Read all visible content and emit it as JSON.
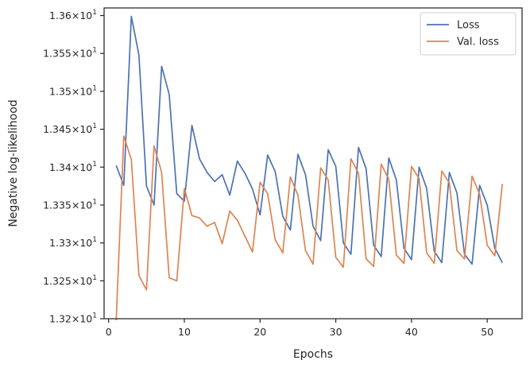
{
  "chart_data": {
    "type": "line",
    "xlabel": "Epochs",
    "ylabel": "Negative log-likelihood",
    "xlim": [
      -0.6,
      54.6
    ],
    "ylim": [
      13.2,
      13.61
    ],
    "xticks": [
      0,
      10,
      20,
      30,
      40,
      50
    ],
    "xtick_labels": [
      "0",
      "10",
      "20",
      "30",
      "40",
      "50"
    ],
    "yticks": [
      13.2,
      13.25,
      13.3,
      13.35,
      13.4,
      13.45,
      13.5,
      13.55,
      13.6
    ],
    "ytick_mantissas": [
      "1.32",
      "1.325",
      "1.33",
      "1.335",
      "1.34",
      "1.345",
      "1.35",
      "1.355",
      "1.36"
    ],
    "ytick_base": "10",
    "ytick_exponent": "1",
    "ytick_times": "×",
    "legend_position": "top-right",
    "x": [
      1,
      2,
      3,
      4,
      5,
      6,
      7,
      8,
      9,
      10,
      11,
      12,
      13,
      14,
      15,
      16,
      17,
      18,
      19,
      20,
      21,
      22,
      23,
      24,
      25,
      26,
      27,
      28,
      29,
      30,
      31,
      32,
      33,
      34,
      35,
      36,
      37,
      38,
      39,
      40,
      41,
      42,
      43,
      44,
      45,
      46,
      47,
      48,
      49,
      50,
      51,
      52
    ],
    "series": [
      {
        "name": "Loss",
        "color": "#4c72b0",
        "values": [
          13.402,
          13.376,
          13.599,
          13.548,
          13.375,
          13.35,
          13.533,
          13.496,
          13.365,
          13.355,
          13.455,
          13.411,
          13.393,
          13.381,
          13.39,
          13.363,
          13.408,
          13.392,
          13.371,
          13.337,
          13.416,
          13.394,
          13.335,
          13.317,
          13.417,
          13.39,
          13.322,
          13.303,
          13.423,
          13.401,
          13.3,
          13.285,
          13.426,
          13.398,
          13.297,
          13.282,
          13.412,
          13.383,
          13.293,
          13.278,
          13.4,
          13.372,
          13.289,
          13.274,
          13.393,
          13.366,
          13.285,
          13.272,
          13.376,
          13.35,
          13.293,
          13.274
        ]
      },
      {
        "name": "Val. loss",
        "color": "#dd8452",
        "values": [
          13.198,
          13.441,
          13.41,
          13.257,
          13.238,
          13.428,
          13.393,
          13.254,
          13.25,
          13.372,
          13.336,
          13.333,
          13.322,
          13.327,
          13.299,
          13.342,
          13.33,
          13.309,
          13.288,
          13.38,
          13.365,
          13.304,
          13.287,
          13.387,
          13.363,
          13.29,
          13.272,
          13.399,
          13.383,
          13.281,
          13.268,
          13.411,
          13.392,
          13.279,
          13.269,
          13.404,
          13.384,
          13.284,
          13.273,
          13.401,
          13.385,
          13.287,
          13.273,
          13.395,
          13.379,
          13.29,
          13.279,
          13.388,
          13.364,
          13.297,
          13.283,
          13.378
        ]
      }
    ]
  }
}
